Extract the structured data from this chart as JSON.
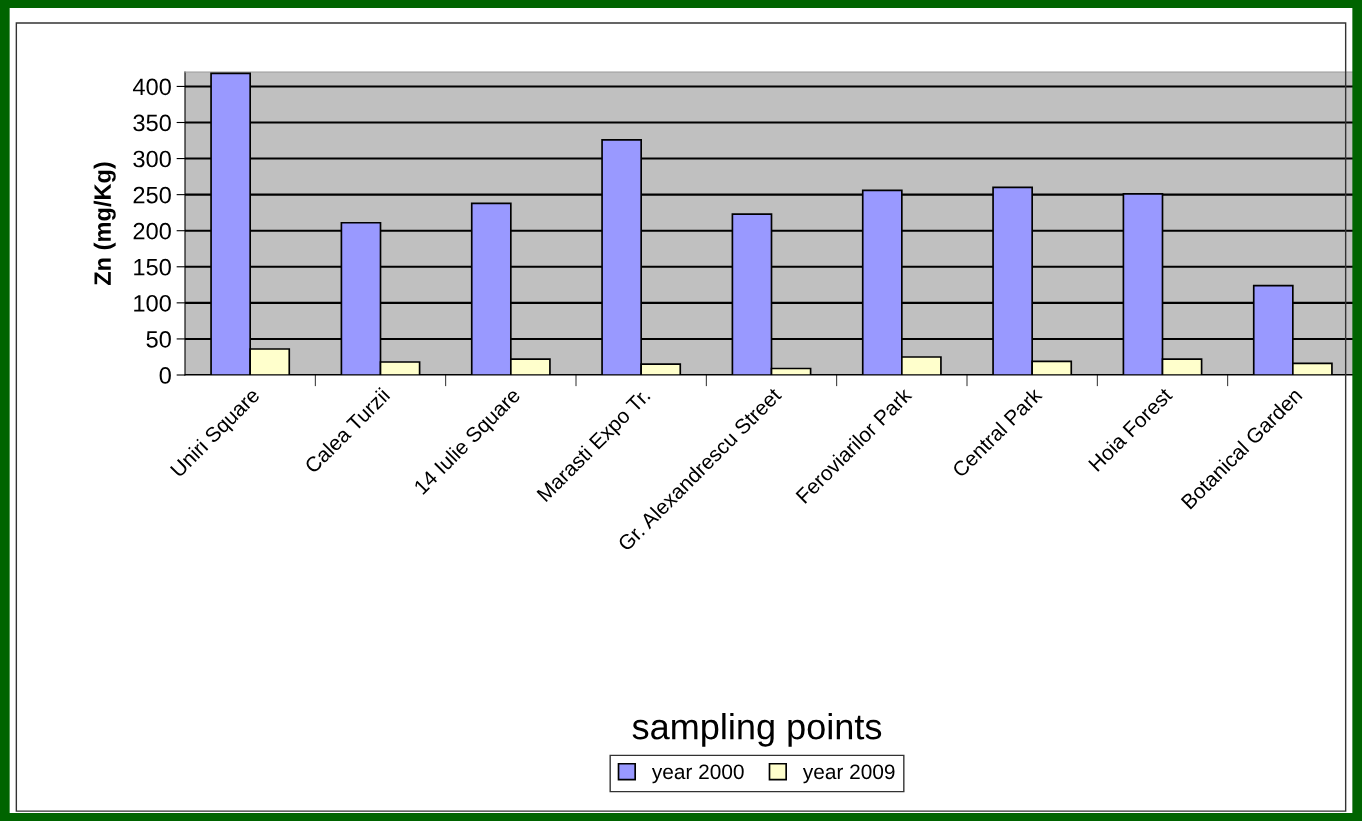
{
  "chart_data": {
    "type": "bar",
    "xlabel": "sampling points",
    "ylabel": "Zn (mg/Kg)",
    "categories": [
      "Uniri Square",
      "Calea Turzii",
      "14 Iulie Square",
      "Marasti Expo Tr.",
      "Gr. Alexandrescu Street",
      "Feroviarilor Park",
      "Central Park",
      "Hoia Forest",
      "Botanical Garden"
    ],
    "series": [
      {
        "name": "year 2000",
        "color": "#9999ff",
        "values": [
          418,
          211,
          238,
          326,
          223,
          256,
          260,
          251,
          124
        ]
      },
      {
        "name": "year 2009",
        "color": "#ffffcc",
        "values": [
          36,
          18,
          22,
          15,
          9,
          25,
          19,
          22,
          16
        ]
      }
    ],
    "ylim": [
      0,
      420
    ],
    "yticks": [
      0,
      50,
      100,
      150,
      200,
      250,
      300,
      350,
      400
    ],
    "grid": "y",
    "legend": "bottom"
  }
}
